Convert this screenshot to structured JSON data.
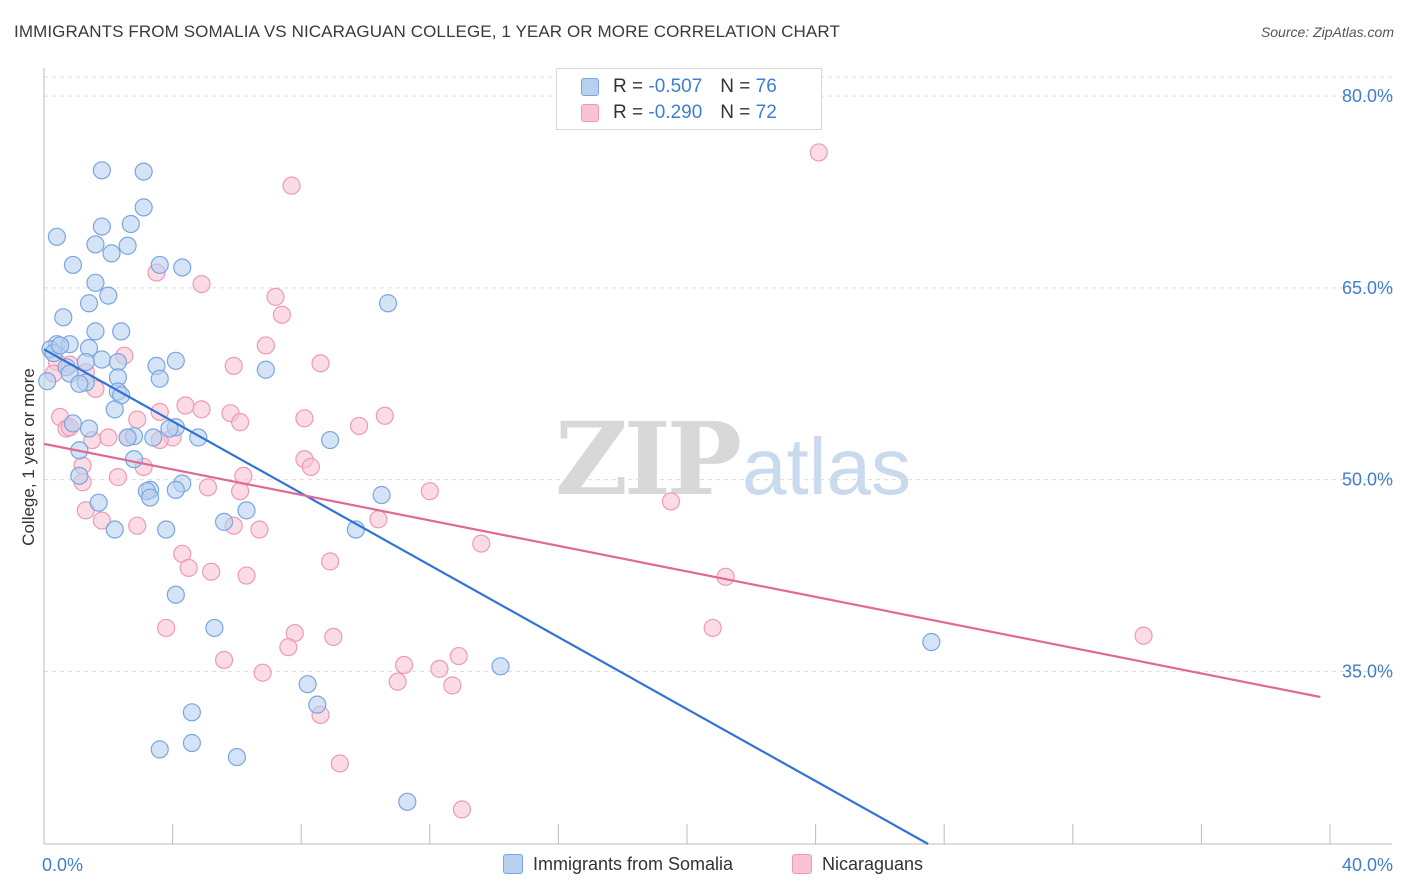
{
  "title": "IMMIGRANTS FROM SOMALIA VS NICARAGUAN COLLEGE, 1 YEAR OR MORE CORRELATION CHART",
  "source": "Source: ZipAtlas.com",
  "watermark": {
    "zip": "ZIP",
    "atlas": "atlas"
  },
  "legend": {
    "rows": [
      {
        "r_label": "R = ",
        "r_value": "-0.507",
        "n_label": "N = ",
        "n_value": "76"
      },
      {
        "r_label": "R = ",
        "r_value": "-0.290",
        "n_label": "N = ",
        "n_value": "72"
      }
    ]
  },
  "colors": {
    "somalia_fill": "#b8d0f0",
    "somalia_stroke": "#7aa6e0",
    "somalia_line": "#2f73d6",
    "nicaragua_fill": "#f8c4d4",
    "nicaragua_stroke": "#ee9ab5",
    "nicaragua_line": "#e06a95",
    "tick_text": "#3d7fcf",
    "grid": "#dcdcdc"
  },
  "chart_data": {
    "type": "scatter",
    "title": "IMMIGRANTS FROM SOMALIA VS NICARAGUAN COLLEGE, 1 YEAR OR MORE CORRELATION CHART",
    "xlabel": "",
    "ylabel": "College, 1 year or more",
    "xlim": [
      0,
      40
    ],
    "ylim": [
      21.5,
      81.5
    ],
    "x_tick_labels": [
      {
        "value": 0,
        "label": "0.0%"
      },
      {
        "value": 40,
        "label": "40.0%"
      }
    ],
    "y_tick_labels": [
      {
        "value": 35,
        "label": "35.0%"
      },
      {
        "value": 50,
        "label": "50.0%"
      },
      {
        "value": 65,
        "label": "65.0%"
      },
      {
        "value": 80,
        "label": "80.0%"
      }
    ],
    "grid": true,
    "legend_position": "top-center",
    "series": [
      {
        "name": "Immigrants from Somalia",
        "color": "#b8d0f0",
        "trend": {
          "x": [
            0.0,
            27.5
          ],
          "y": [
            60.2,
            21.5
          ]
        },
        "points": [
          [
            1.8,
            74.2
          ],
          [
            3.1,
            74.1
          ],
          [
            3.1,
            71.3
          ],
          [
            2.7,
            70.0
          ],
          [
            1.8,
            69.8
          ],
          [
            0.4,
            69.0
          ],
          [
            1.6,
            68.4
          ],
          [
            2.6,
            68.3
          ],
          [
            2.1,
            67.7
          ],
          [
            0.9,
            66.8
          ],
          [
            3.6,
            66.8
          ],
          [
            4.3,
            66.6
          ],
          [
            1.6,
            65.4
          ],
          [
            2.0,
            64.4
          ],
          [
            10.7,
            63.8
          ],
          [
            1.4,
            63.8
          ],
          [
            0.6,
            62.7
          ],
          [
            1.6,
            61.6
          ],
          [
            0.4,
            60.6
          ],
          [
            0.8,
            60.6
          ],
          [
            0.2,
            60.2
          ],
          [
            2.4,
            61.6
          ],
          [
            1.4,
            60.3
          ],
          [
            0.3,
            59.9
          ],
          [
            1.8,
            59.4
          ],
          [
            2.3,
            59.2
          ],
          [
            4.1,
            59.3
          ],
          [
            1.3,
            59.2
          ],
          [
            3.5,
            58.9
          ],
          [
            0.7,
            58.8
          ],
          [
            6.9,
            58.6
          ],
          [
            0.8,
            58.3
          ],
          [
            2.3,
            58.0
          ],
          [
            3.6,
            57.9
          ],
          [
            0.1,
            57.7
          ],
          [
            1.3,
            57.6
          ],
          [
            2.3,
            56.9
          ],
          [
            2.4,
            56.6
          ],
          [
            4.1,
            54.1
          ],
          [
            1.4,
            54.0
          ],
          [
            3.9,
            54.0
          ],
          [
            0.9,
            54.4
          ],
          [
            2.8,
            53.4
          ],
          [
            2.6,
            53.3
          ],
          [
            3.4,
            53.3
          ],
          [
            4.8,
            53.3
          ],
          [
            8.9,
            53.1
          ],
          [
            1.1,
            52.3
          ],
          [
            2.8,
            51.6
          ],
          [
            1.1,
            50.3
          ],
          [
            4.3,
            49.7
          ],
          [
            3.3,
            49.2
          ],
          [
            3.2,
            49.1
          ],
          [
            4.1,
            49.2
          ],
          [
            3.3,
            48.6
          ],
          [
            10.5,
            48.8
          ],
          [
            1.7,
            48.2
          ],
          [
            6.3,
            47.6
          ],
          [
            5.6,
            46.7
          ],
          [
            2.2,
            46.1
          ],
          [
            3.8,
            46.1
          ],
          [
            9.7,
            46.1
          ],
          [
            4.1,
            41.0
          ],
          [
            5.3,
            38.4
          ],
          [
            27.6,
            37.3
          ],
          [
            14.2,
            35.4
          ],
          [
            8.2,
            34.0
          ],
          [
            8.5,
            32.4
          ],
          [
            4.6,
            31.8
          ],
          [
            4.6,
            29.4
          ],
          [
            3.6,
            28.9
          ],
          [
            6.0,
            28.3
          ],
          [
            11.3,
            24.8
          ],
          [
            0.5,
            60.5
          ],
          [
            1.1,
            57.5
          ],
          [
            2.2,
            55.5
          ]
        ]
      },
      {
        "name": "Nicaraguans",
        "color": "#f8c4d4",
        "trend": {
          "x": [
            0.0,
            39.7
          ],
          "y": [
            52.8,
            33.0
          ]
        },
        "points": [
          [
            24.1,
            75.6
          ],
          [
            7.7,
            73.0
          ],
          [
            3.5,
            66.2
          ],
          [
            4.9,
            65.3
          ],
          [
            7.2,
            64.3
          ],
          [
            7.4,
            62.9
          ],
          [
            6.9,
            60.5
          ],
          [
            2.5,
            59.7
          ],
          [
            0.4,
            59.2
          ],
          [
            8.6,
            59.1
          ],
          [
            5.9,
            58.9
          ],
          [
            0.8,
            59.0
          ],
          [
            0.3,
            58.3
          ],
          [
            1.3,
            58.4
          ],
          [
            1.6,
            57.1
          ],
          [
            3.6,
            55.3
          ],
          [
            4.4,
            55.8
          ],
          [
            4.9,
            55.5
          ],
          [
            5.8,
            55.2
          ],
          [
            8.1,
            54.8
          ],
          [
            10.6,
            55.0
          ],
          [
            6.1,
            54.5
          ],
          [
            9.8,
            54.2
          ],
          [
            0.5,
            54.9
          ],
          [
            0.7,
            54.0
          ],
          [
            0.8,
            54.1
          ],
          [
            2.0,
            53.3
          ],
          [
            4.0,
            53.3
          ],
          [
            2.6,
            53.3
          ],
          [
            2.9,
            54.7
          ],
          [
            1.5,
            53.1
          ],
          [
            8.1,
            51.6
          ],
          [
            8.3,
            51.0
          ],
          [
            3.1,
            51.0
          ],
          [
            6.2,
            50.3
          ],
          [
            2.3,
            50.2
          ],
          [
            1.2,
            49.8
          ],
          [
            5.1,
            49.4
          ],
          [
            12.0,
            49.1
          ],
          [
            6.1,
            49.1
          ],
          [
            19.5,
            48.3
          ],
          [
            1.3,
            47.6
          ],
          [
            1.8,
            46.8
          ],
          [
            2.9,
            46.4
          ],
          [
            5.9,
            46.4
          ],
          [
            10.4,
            46.9
          ],
          [
            6.7,
            46.1
          ],
          [
            13.6,
            45.0
          ],
          [
            4.3,
            44.2
          ],
          [
            8.9,
            43.6
          ],
          [
            4.5,
            43.1
          ],
          [
            5.2,
            42.8
          ],
          [
            6.3,
            42.5
          ],
          [
            21.2,
            42.4
          ],
          [
            3.8,
            38.4
          ],
          [
            20.8,
            38.4
          ],
          [
            7.8,
            38.0
          ],
          [
            9.0,
            37.7
          ],
          [
            34.2,
            37.8
          ],
          [
            7.6,
            36.9
          ],
          [
            12.9,
            36.2
          ],
          [
            5.6,
            35.9
          ],
          [
            11.2,
            35.5
          ],
          [
            12.3,
            35.2
          ],
          [
            6.8,
            34.9
          ],
          [
            11.0,
            34.2
          ],
          [
            12.7,
            33.9
          ],
          [
            8.6,
            31.6
          ],
          [
            9.2,
            27.8
          ],
          [
            13.0,
            24.2
          ],
          [
            3.6,
            53.1
          ],
          [
            1.2,
            51.1
          ]
        ]
      }
    ]
  },
  "bottom_legend": [
    {
      "label": "Immigrants from Somalia"
    },
    {
      "label": "Nicaraguans"
    }
  ]
}
